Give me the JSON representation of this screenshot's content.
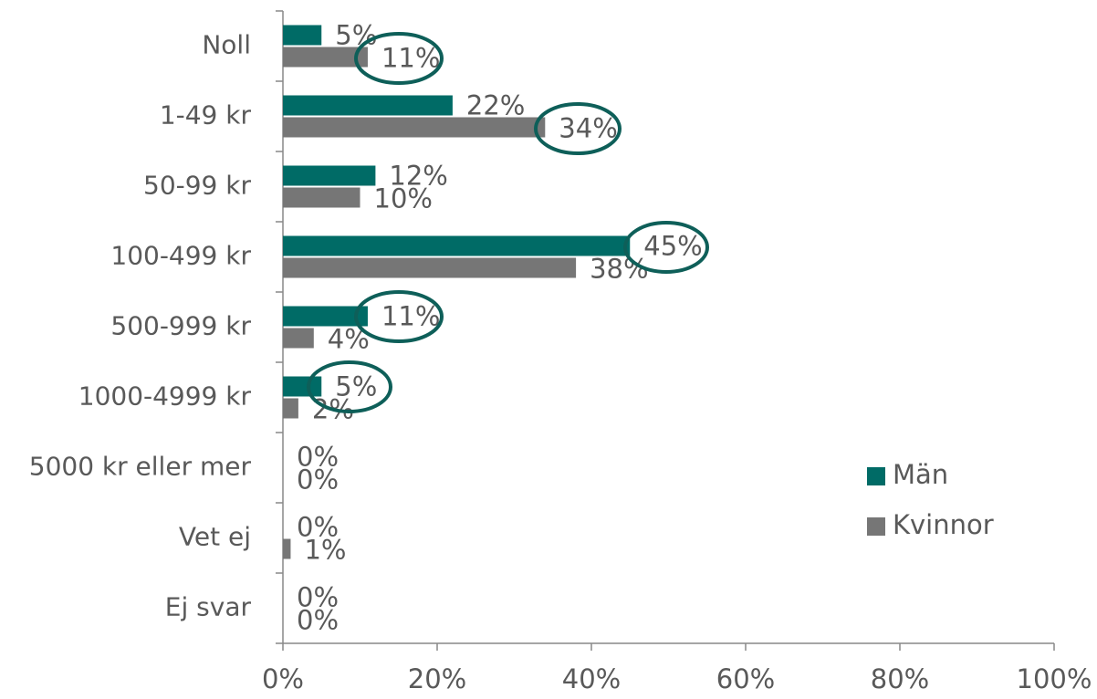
{
  "chart_data": {
    "type": "hbar",
    "categories": [
      "Noll",
      "1-49 kr",
      "50-99 kr",
      "100-499 kr",
      "500-999 kr",
      "1000-4999 kr",
      "5000 kr eller mer",
      "Vet ej",
      "Ej svar"
    ],
    "series": [
      {
        "name": "Män",
        "color": "#006b66",
        "values": [
          5,
          22,
          12,
          45,
          11,
          5,
          0,
          0,
          0
        ],
        "value_labels": [
          "5%",
          "22%",
          "12%",
          "45%",
          "11%",
          "5%",
          "0%",
          "0%",
          "0%"
        ]
      },
      {
        "name": "Kvinnor",
        "color": "#767676",
        "values": [
          11,
          34,
          10,
          38,
          4,
          2,
          0,
          1,
          0
        ],
        "value_labels": [
          "11%",
          "34%",
          "10%",
          "38%",
          "4%",
          "2%",
          "0%",
          "1%",
          "0%"
        ]
      }
    ],
    "xlim": [
      0,
      100
    ],
    "xticks": [
      {
        "value": 0,
        "label": "0%"
      },
      {
        "value": 20,
        "label": "20%"
      },
      {
        "value": 40,
        "label": "40%"
      },
      {
        "value": 60,
        "label": "60%"
      },
      {
        "value": 80,
        "label": "80%"
      },
      {
        "value": 100,
        "label": "100%"
      }
    ],
    "legend": "right"
  }
}
